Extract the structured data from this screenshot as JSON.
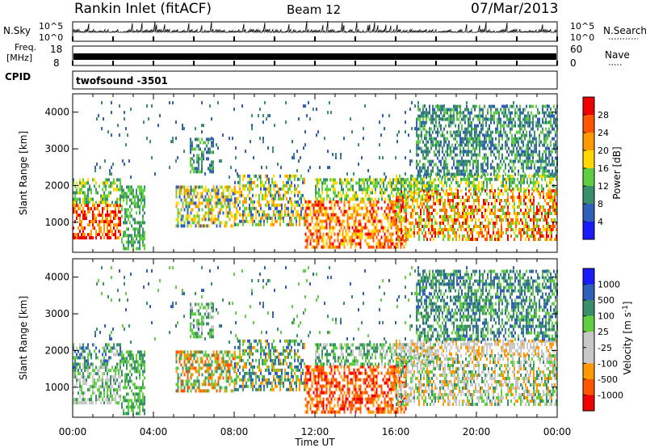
{
  "header": {
    "station": "Rankin Inlet (fitACF)",
    "beam": "Beam 12",
    "date": "07/Mar/2013"
  },
  "strips": {
    "nsky_label": "N.Sky",
    "nsky_top": "10^5",
    "nsky_bottom": "10^0",
    "nsearch_label": "N.Search",
    "nsearch_top": "10^5",
    "nsearch_bottom": "10^0",
    "freq_label": "Freq.",
    "freq_unit": "[MHz]",
    "freq_top": "18",
    "freq_bottom": "8",
    "nave_label": "Nave",
    "nave_top": "60",
    "nave_bottom": "0",
    "cpid_label": "CPID",
    "cpid_value": "twofsound -3501"
  },
  "colors": {
    "power": [
      "#1a1aff",
      "#2f5fb8",
      "#3a8f6a",
      "#5fcf40",
      "#ffd900",
      "#ff9900",
      "#ff5500",
      "#ee0000"
    ],
    "velocity": [
      "#ee0000",
      "#ff5500",
      "#ff9900",
      "#c8c8c8",
      "#c8c8c8",
      "#5fcf40",
      "#3a8f6a",
      "#2f5fb8",
      "#1a1aff"
    ]
  },
  "chart_data": [
    {
      "type": "heatmap",
      "name": "power",
      "xlabel": "",
      "ylabel": "Slant Range [km]",
      "xlim": [
        "00:00",
        "24:00"
      ],
      "ylim": [
        180,
        4500
      ],
      "yticks": [
        1000,
        2000,
        3000,
        4000
      ],
      "colorbar_label": "Power [dB]",
      "colorbar_ticks": [
        4,
        8,
        12,
        16,
        20,
        24,
        28
      ],
      "colorbar_range": [
        0,
        32
      ]
    },
    {
      "type": "heatmap",
      "name": "velocity",
      "xlabel": "Time UT",
      "ylabel": "Slant Range [km]",
      "xlim": [
        "00:00",
        "24:00"
      ],
      "ylim": [
        180,
        4500
      ],
      "yticks": [
        1000,
        2000,
        3000,
        4000
      ],
      "xticks": [
        "00:00",
        "04:00",
        "08:00",
        "12:00",
        "16:00",
        "20:00",
        "00:00"
      ],
      "colorbar_label": "Velocity [m s-1]",
      "colorbar_ticks": [
        1000,
        500,
        100,
        25,
        -25,
        -100,
        -500,
        -1000
      ]
    }
  ]
}
